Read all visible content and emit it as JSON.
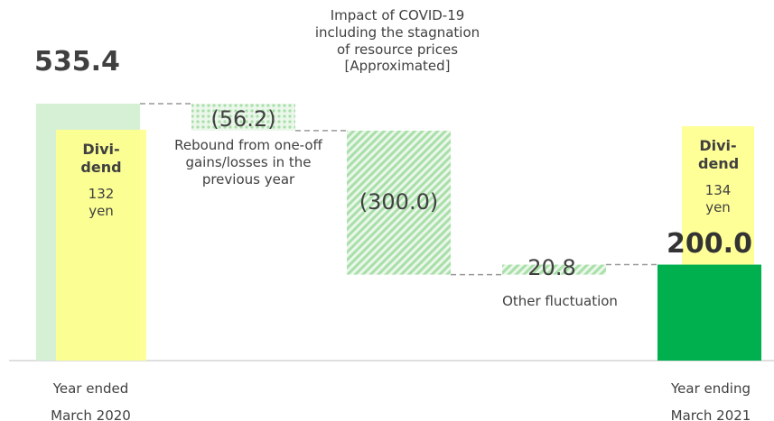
{
  "chart_data": {
    "type": "waterfall",
    "categories": [
      "Year ended March 2020",
      "Rebound from one-off gains/losses in the previous year",
      "Impact of COVID-19 including the stagnation of resource prices [Approximated]",
      "Other fluctuation",
      "Year ending March 2021"
    ],
    "values": [
      535.4,
      -56.2,
      -300.0,
      20.8,
      200.0
    ],
    "value_labels": [
      "535.4",
      "(56.2)",
      "(300.0)",
      "20.8",
      "200.0"
    ],
    "colors": {
      "start": "#d5f0d5",
      "step": "#a9dfa9",
      "end": "#00b04f"
    },
    "dividend": {
      "label": "Divi-dend",
      "values": [
        132,
        134
      ],
      "value_labels": [
        "132 yen",
        "134 yen"
      ],
      "color": "#ffff8c"
    }
  }
}
